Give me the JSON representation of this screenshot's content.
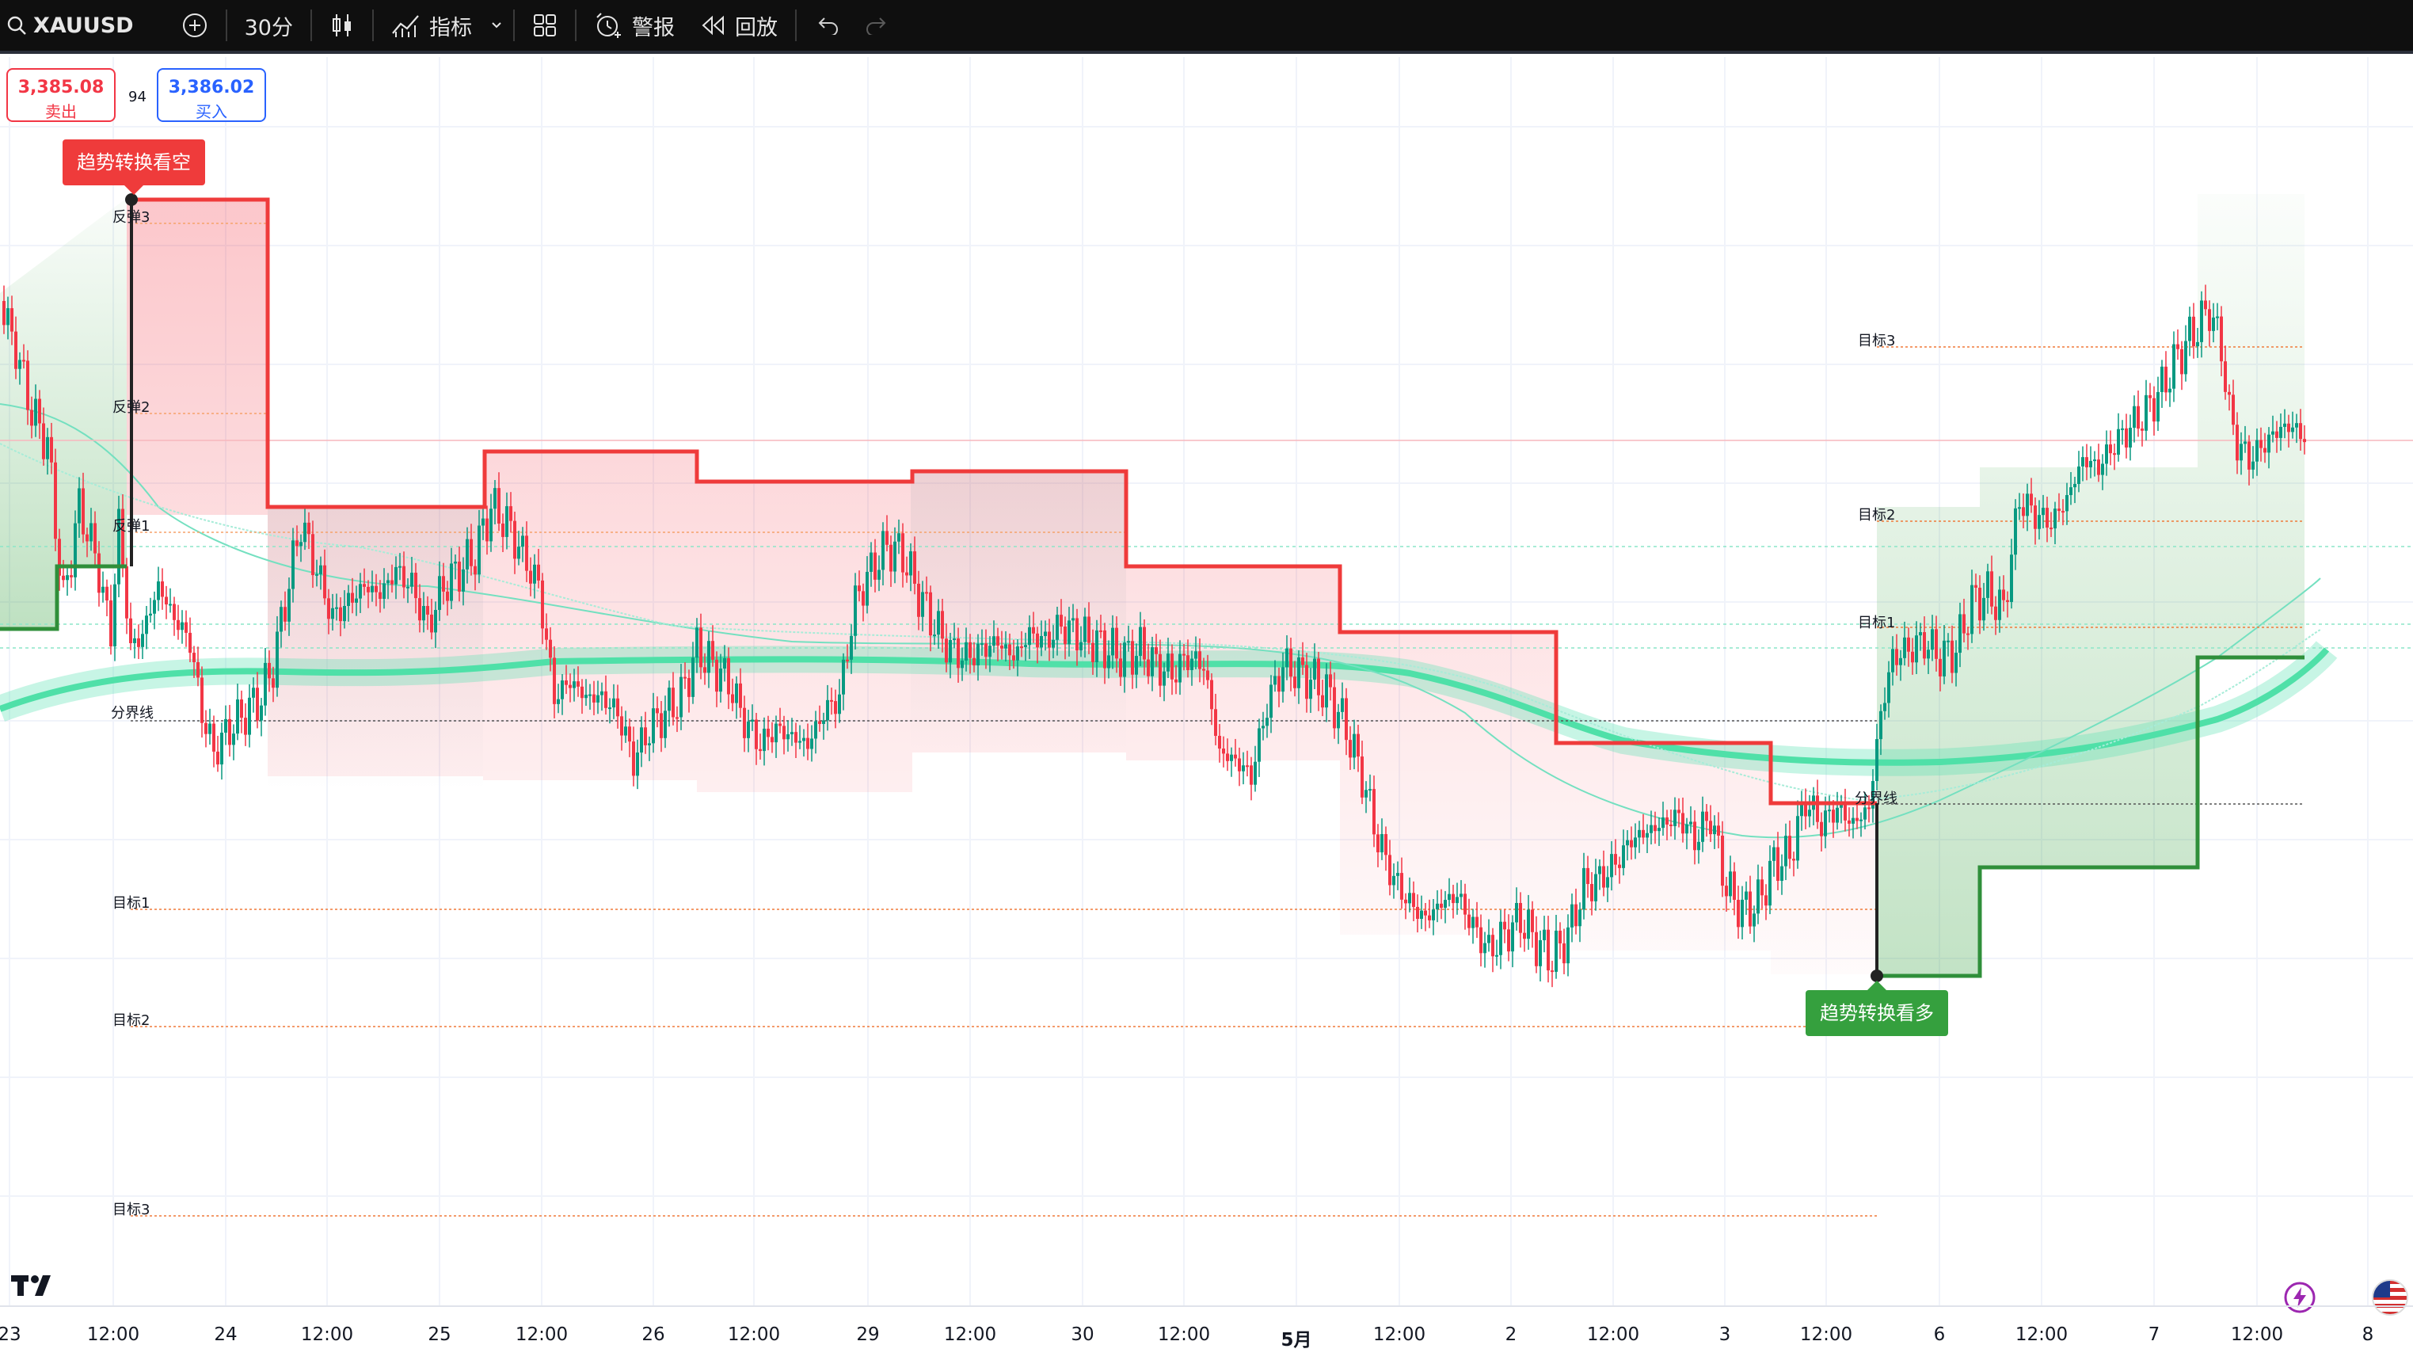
{
  "toolbar": {
    "symbol": "XAUUSD",
    "interval": "30分",
    "indicators_label": "指标",
    "alerts_label": "警报",
    "replay_label": "回放"
  },
  "quote": {
    "sell_price": "3,385.08",
    "sell_label": "卖出",
    "spread": "94",
    "buy_price": "3,386.02",
    "buy_label": "买入"
  },
  "signals": {
    "bearish": "趋势转换看空",
    "bullish": "趋势转换看多"
  },
  "levels_left": {
    "rebound3": "反弹3",
    "rebound2": "反弹2",
    "rebound1": "反弹1",
    "divider": "分界线",
    "target1": "目标1",
    "target2": "目标2",
    "target3": "目标3"
  },
  "levels_right": {
    "target3": "目标3",
    "target2": "目标2",
    "target1": "目标1",
    "divider": "分界线"
  },
  "time_axis": [
    "23",
    "12:00",
    "24",
    "12:00",
    "25",
    "12:00",
    "26",
    "12:00",
    "29",
    "12:00",
    "30",
    "12:00",
    "5月",
    "12:00",
    "2",
    "12:00",
    "3",
    "12:00",
    "6",
    "12:00",
    "7",
    "12:00",
    "8"
  ],
  "colors": {
    "bear": "#ef3b3b",
    "bull": "#35a03e",
    "candle_up": "#089981",
    "candle_down": "#f23645",
    "ma_band": "#5fe3b5",
    "toolbar_bg": "#0f0f0f"
  },
  "icons": [
    "search-icon",
    "plus-circle-icon",
    "candles-icon",
    "indicators-icon",
    "chevron-down-icon",
    "layout-grid-icon",
    "alarm-icon",
    "replay-icon",
    "undo-icon",
    "redo-icon",
    "lightning-icon",
    "us-flag-icon",
    "tradingview-logo"
  ]
}
